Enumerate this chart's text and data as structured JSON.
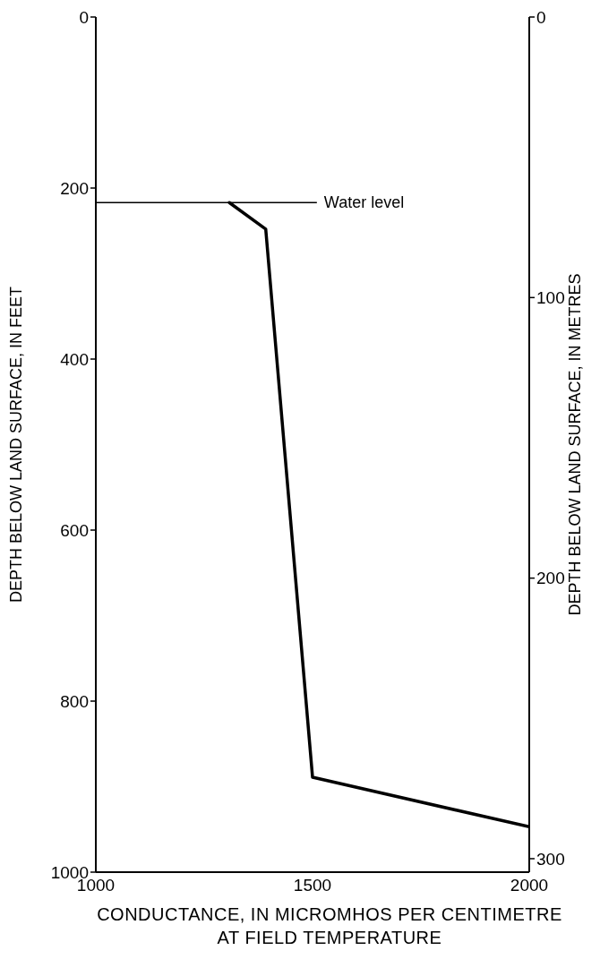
{
  "chart_data": {
    "type": "line",
    "xlabel": "CONDUCTANCE, IN MICROMHOS PER CENTIMETRE AT FIELD TEMPERATURE",
    "ylabel": "DEPTH BELOW LAND SURFACE, IN FEET",
    "y2label": "DEPTH BELOW LAND SURFACE, IN METRES",
    "x": [
      1308,
      1392,
      1500,
      2000
    ],
    "series": [
      {
        "color": "#000000",
        "values": [
          217,
          248,
          889,
          947
        ]
      }
    ],
    "xlim": [
      1000,
      2000
    ],
    "xticks": [
      1000,
      1500,
      2000
    ],
    "ylim": [
      1000,
      0
    ],
    "yticks": [
      0,
      200,
      400,
      600,
      800,
      1000
    ],
    "y2lim": [
      304.8,
      0
    ],
    "y2ticks": [
      0,
      100,
      200,
      300
    ],
    "ref_lines": [
      {
        "axis": "y",
        "value": 217,
        "label": "Water level",
        "color": "#000000"
      }
    ],
    "grid": false,
    "legend": false,
    "marker": "none",
    "line_style": "solid"
  }
}
